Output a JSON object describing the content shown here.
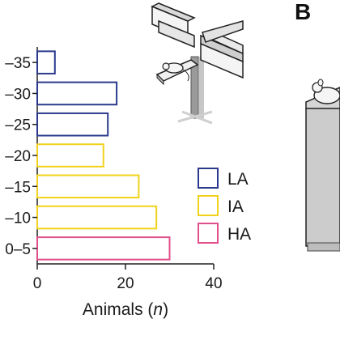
{
  "panel_label": "B",
  "chart_data": {
    "type": "bar",
    "orientation": "horizontal",
    "categories": [
      "–35",
      "–30",
      "–25",
      "–20",
      "–15",
      "–10",
      "0–5"
    ],
    "values": [
      4,
      18,
      16,
      15,
      23,
      27,
      30
    ],
    "groups": [
      "LA",
      "LA",
      "LA",
      "IA",
      "IA",
      "IA",
      "HA"
    ],
    "xlabel_text": "Animals (",
    "xlabel_var": "n",
    "xlabel_close": ")",
    "xlim": [
      0,
      40
    ],
    "xticks": [
      "0",
      "20",
      "40"
    ],
    "legend": [
      {
        "label": "LA",
        "color": "#2b3a8c"
      },
      {
        "label": "IA",
        "color": "#f2d21b"
      },
      {
        "label": "HA",
        "color": "#e0508a"
      }
    ],
    "legend_placement": "right",
    "grid": false
  }
}
